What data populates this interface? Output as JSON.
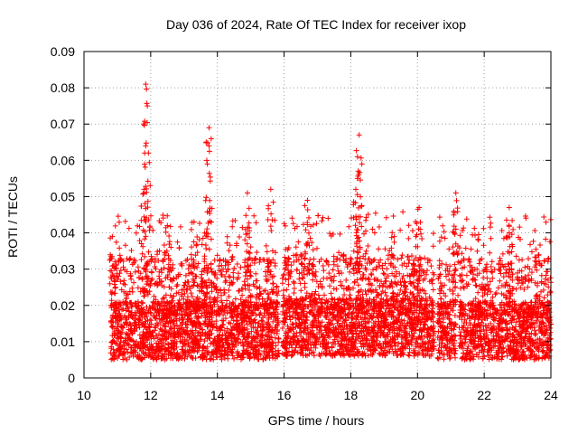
{
  "chart_data": {
    "type": "scatter",
    "title": "Day 036 of 2024, Rate Of TEC Index for receiver ixop",
    "xlabel": "GPS time / hours",
    "ylabel": "ROTI / TECUs",
    "xlim": [
      10,
      24
    ],
    "ylim": [
      0,
      0.09
    ],
    "x_ticks": [
      10,
      12,
      14,
      16,
      18,
      20,
      22,
      24
    ],
    "y_ticks": [
      0,
      0.01,
      0.02,
      0.03,
      0.04,
      0.05,
      0.06,
      0.07,
      0.08,
      0.09
    ],
    "x_tick_labels": [
      "10",
      "12",
      "14",
      "16",
      "18",
      "20",
      "22",
      "24"
    ],
    "y_tick_labels": [
      "0",
      "0.01",
      "0.02",
      "0.03",
      "0.04",
      "0.05",
      "0.06",
      "0.07",
      "0.08",
      "0.09"
    ],
    "grid": true,
    "marker": "+",
    "series": [
      {
        "name": "ROTI",
        "color": "#ff0000",
        "segments": [
          {
            "x_start": 10.8,
            "x_end": 15.85,
            "base": 0.013
          },
          {
            "x_start": 15.95,
            "x_end": 20.5,
            "base": 0.014
          },
          {
            "x_start": 20.6,
            "x_end": 21.15,
            "base": 0.013
          },
          {
            "x_start": 21.25,
            "x_end": 24.0,
            "base": 0.013
          }
        ],
        "peaks": [
          {
            "x": 11.85,
            "y": 0.081
          },
          {
            "x": 11.9,
            "y": 0.075
          },
          {
            "x": 11.85,
            "y": 0.064
          },
          {
            "x": 13.75,
            "y": 0.069
          },
          {
            "x": 13.75,
            "y": 0.064
          },
          {
            "x": 13.7,
            "y": 0.059
          },
          {
            "x": 18.25,
            "y": 0.067
          },
          {
            "x": 18.2,
            "y": 0.061
          },
          {
            "x": 18.2,
            "y": 0.055
          },
          {
            "x": 18.15,
            "y": 0.052
          },
          {
            "x": 11.8,
            "y": 0.052
          },
          {
            "x": 15.6,
            "y": 0.052
          },
          {
            "x": 14.9,
            "y": 0.051
          },
          {
            "x": 21.15,
            "y": 0.051
          },
          {
            "x": 16.7,
            "y": 0.049
          },
          {
            "x": 20.05,
            "y": 0.047
          },
          {
            "x": 22.75,
            "y": 0.047
          },
          {
            "x": 13.3,
            "y": 0.043
          },
          {
            "x": 12.5,
            "y": 0.042
          },
          {
            "x": 21.15,
            "y": 0.041
          },
          {
            "x": 22.75,
            "y": 0.04
          },
          {
            "x": 10.85,
            "y": 0.039
          },
          {
            "x": 19.3,
            "y": 0.039
          },
          {
            "x": 19.95,
            "y": 0.039
          }
        ]
      }
    ]
  }
}
